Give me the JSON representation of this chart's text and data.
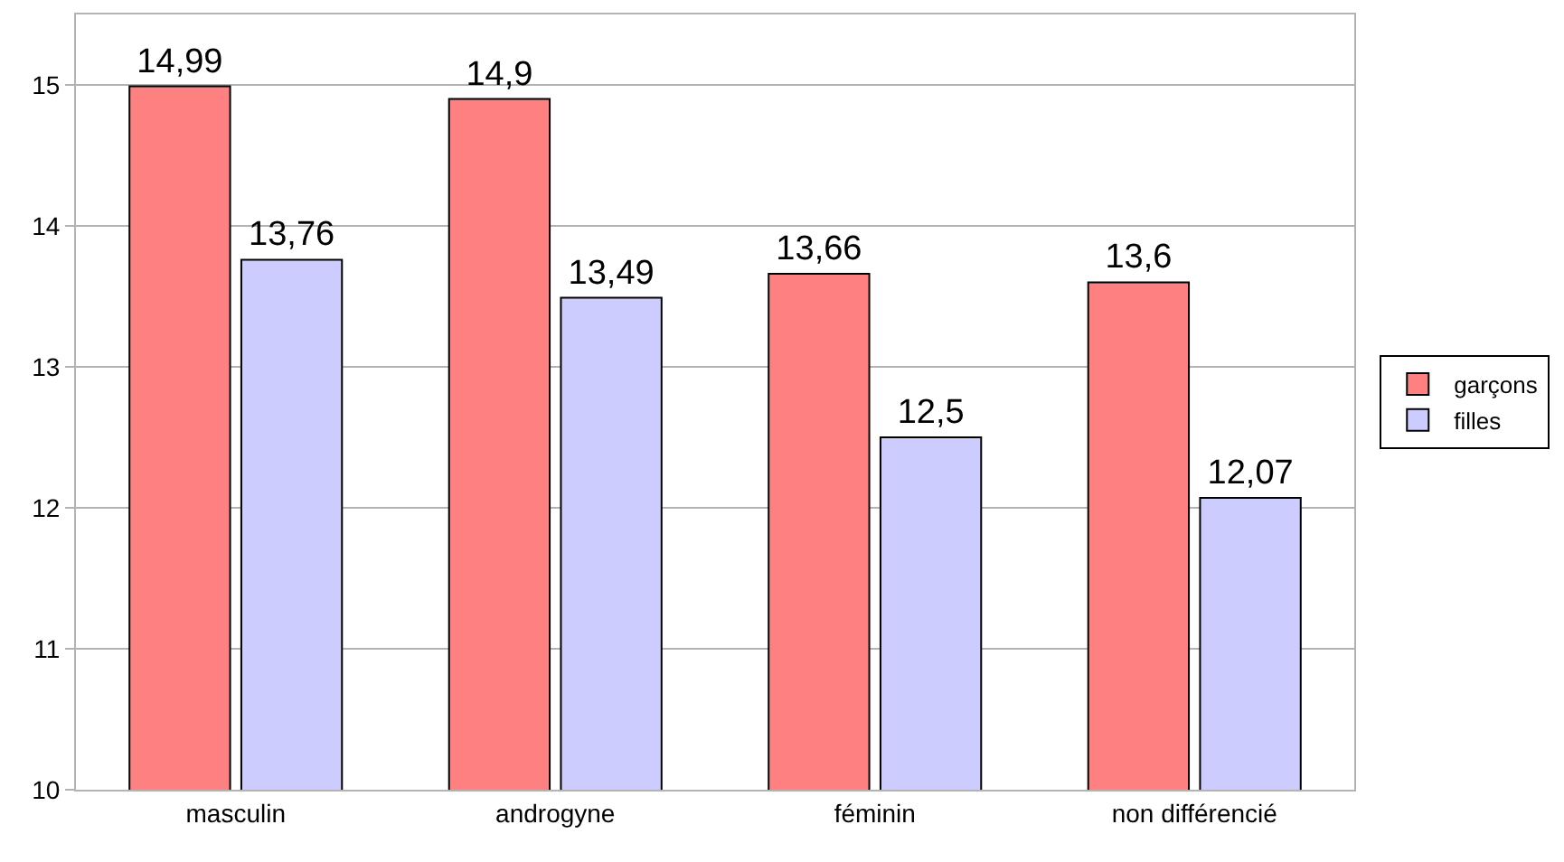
{
  "chart_data": {
    "type": "bar",
    "categories": [
      "masculin",
      "androgyne",
      "féminin",
      "non différencié"
    ],
    "series": [
      {
        "name": "garçons",
        "color": "#ff8080",
        "values": [
          14.99,
          14.9,
          13.66,
          13.6
        ],
        "value_labels": [
          "14,99",
          "14,9",
          "13,66",
          "13,6"
        ]
      },
      {
        "name": "filles",
        "color": "#ccccff",
        "values": [
          13.76,
          13.49,
          12.5,
          12.07
        ],
        "value_labels": [
          "13,76",
          "13,49",
          "12,5",
          "12,07"
        ]
      }
    ],
    "ylim": [
      10,
      15.5
    ],
    "yticks": [
      10,
      11,
      12,
      13,
      14,
      15
    ],
    "grid": "y",
    "legend": "right"
  }
}
